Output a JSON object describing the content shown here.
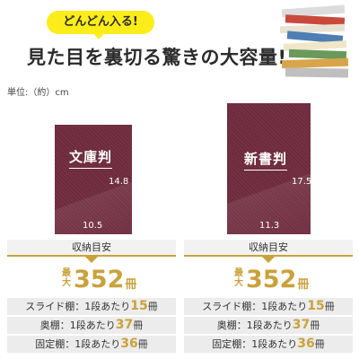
{
  "header": {
    "tag": "どんどん入る!",
    "headline": "見た目を裏切る驚きの大容量!"
  },
  "unit_note": "単位:（約）cm",
  "books": [
    {
      "title": "文庫判",
      "height": "14.8",
      "width": "10.5",
      "label": "収納目安",
      "cap_prefix": [
        "最",
        "大"
      ],
      "cap_number": "352",
      "cap_unit": "冊",
      "rows": [
        {
          "prefix": "スライド棚：1段あたり",
          "num": "15",
          "suffix": "冊"
        },
        {
          "prefix": "奥棚：1段あたり",
          "num": "37",
          "suffix": "冊"
        },
        {
          "prefix": "固定棚：1段あたり",
          "num": "36",
          "suffix": "冊"
        }
      ]
    },
    {
      "title": "新書判",
      "height": "17.5",
      "width": "11.3",
      "label": "収納目安",
      "cap_prefix": [
        "最",
        "大"
      ],
      "cap_number": "352",
      "cap_unit": "冊",
      "rows": [
        {
          "prefix": "スライド棚：1段あたり",
          "num": "15",
          "suffix": "冊"
        },
        {
          "prefix": "奥棚：1段あたり",
          "num": "37",
          "suffix": "冊"
        },
        {
          "prefix": "固定棚：1段あたり",
          "num": "36",
          "suffix": "冊"
        }
      ]
    }
  ],
  "colors": {
    "cover": "#6e2b3d",
    "accent_gold": "#c9a23b",
    "tag_yellow": "#fcec1a"
  }
}
